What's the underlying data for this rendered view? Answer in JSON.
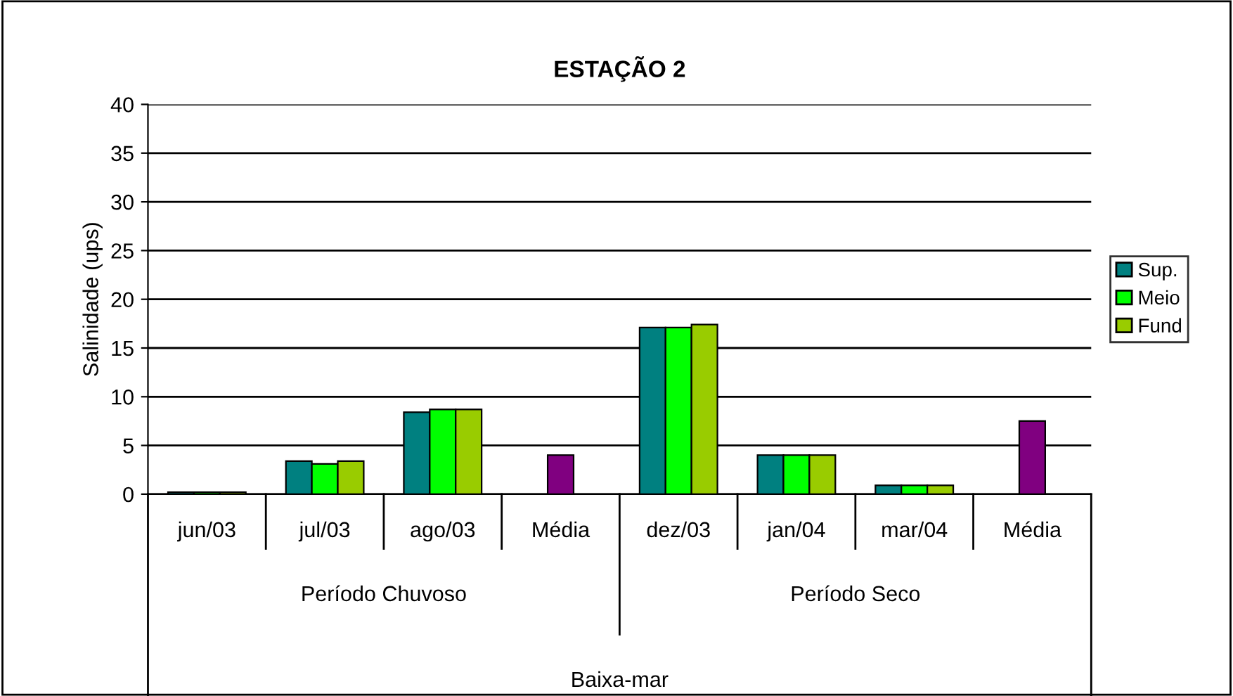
{
  "chart_data": {
    "type": "bar",
    "title": "ESTAÇÃO 2",
    "ylabel": "Salinidade (ups)",
    "categories": [
      "jun/03",
      "jul/03",
      "ago/03",
      "Média",
      "dez/03",
      "jan/04",
      "mar/04",
      "Média"
    ],
    "series": [
      {
        "name": "Sup.",
        "color": "#008080",
        "values": [
          0.2,
          3.4,
          8.4,
          null,
          17.1,
          4.0,
          0.9,
          null
        ]
      },
      {
        "name": "Meio",
        "color": "#00ff00",
        "values": [
          0.2,
          3.1,
          8.7,
          null,
          17.1,
          4.0,
          0.9,
          null
        ]
      },
      {
        "name": "Fund",
        "color": "#99cc00",
        "values": [
          0.2,
          3.4,
          8.7,
          null,
          17.4,
          4.0,
          0.9,
          null
        ]
      },
      {
        "color": "#800080",
        "values": [
          null,
          null,
          null,
          4.0,
          null,
          null,
          null,
          7.5
        ]
      }
    ],
    "annotations": [
      "Período Chuvoso",
      "Período Seco",
      "Baixa-mar"
    ],
    "ylim": [
      0,
      40
    ],
    "yticks": [
      0,
      5,
      10,
      15,
      20,
      25,
      30,
      35,
      40
    ],
    "grid": "y",
    "legend": "right"
  }
}
